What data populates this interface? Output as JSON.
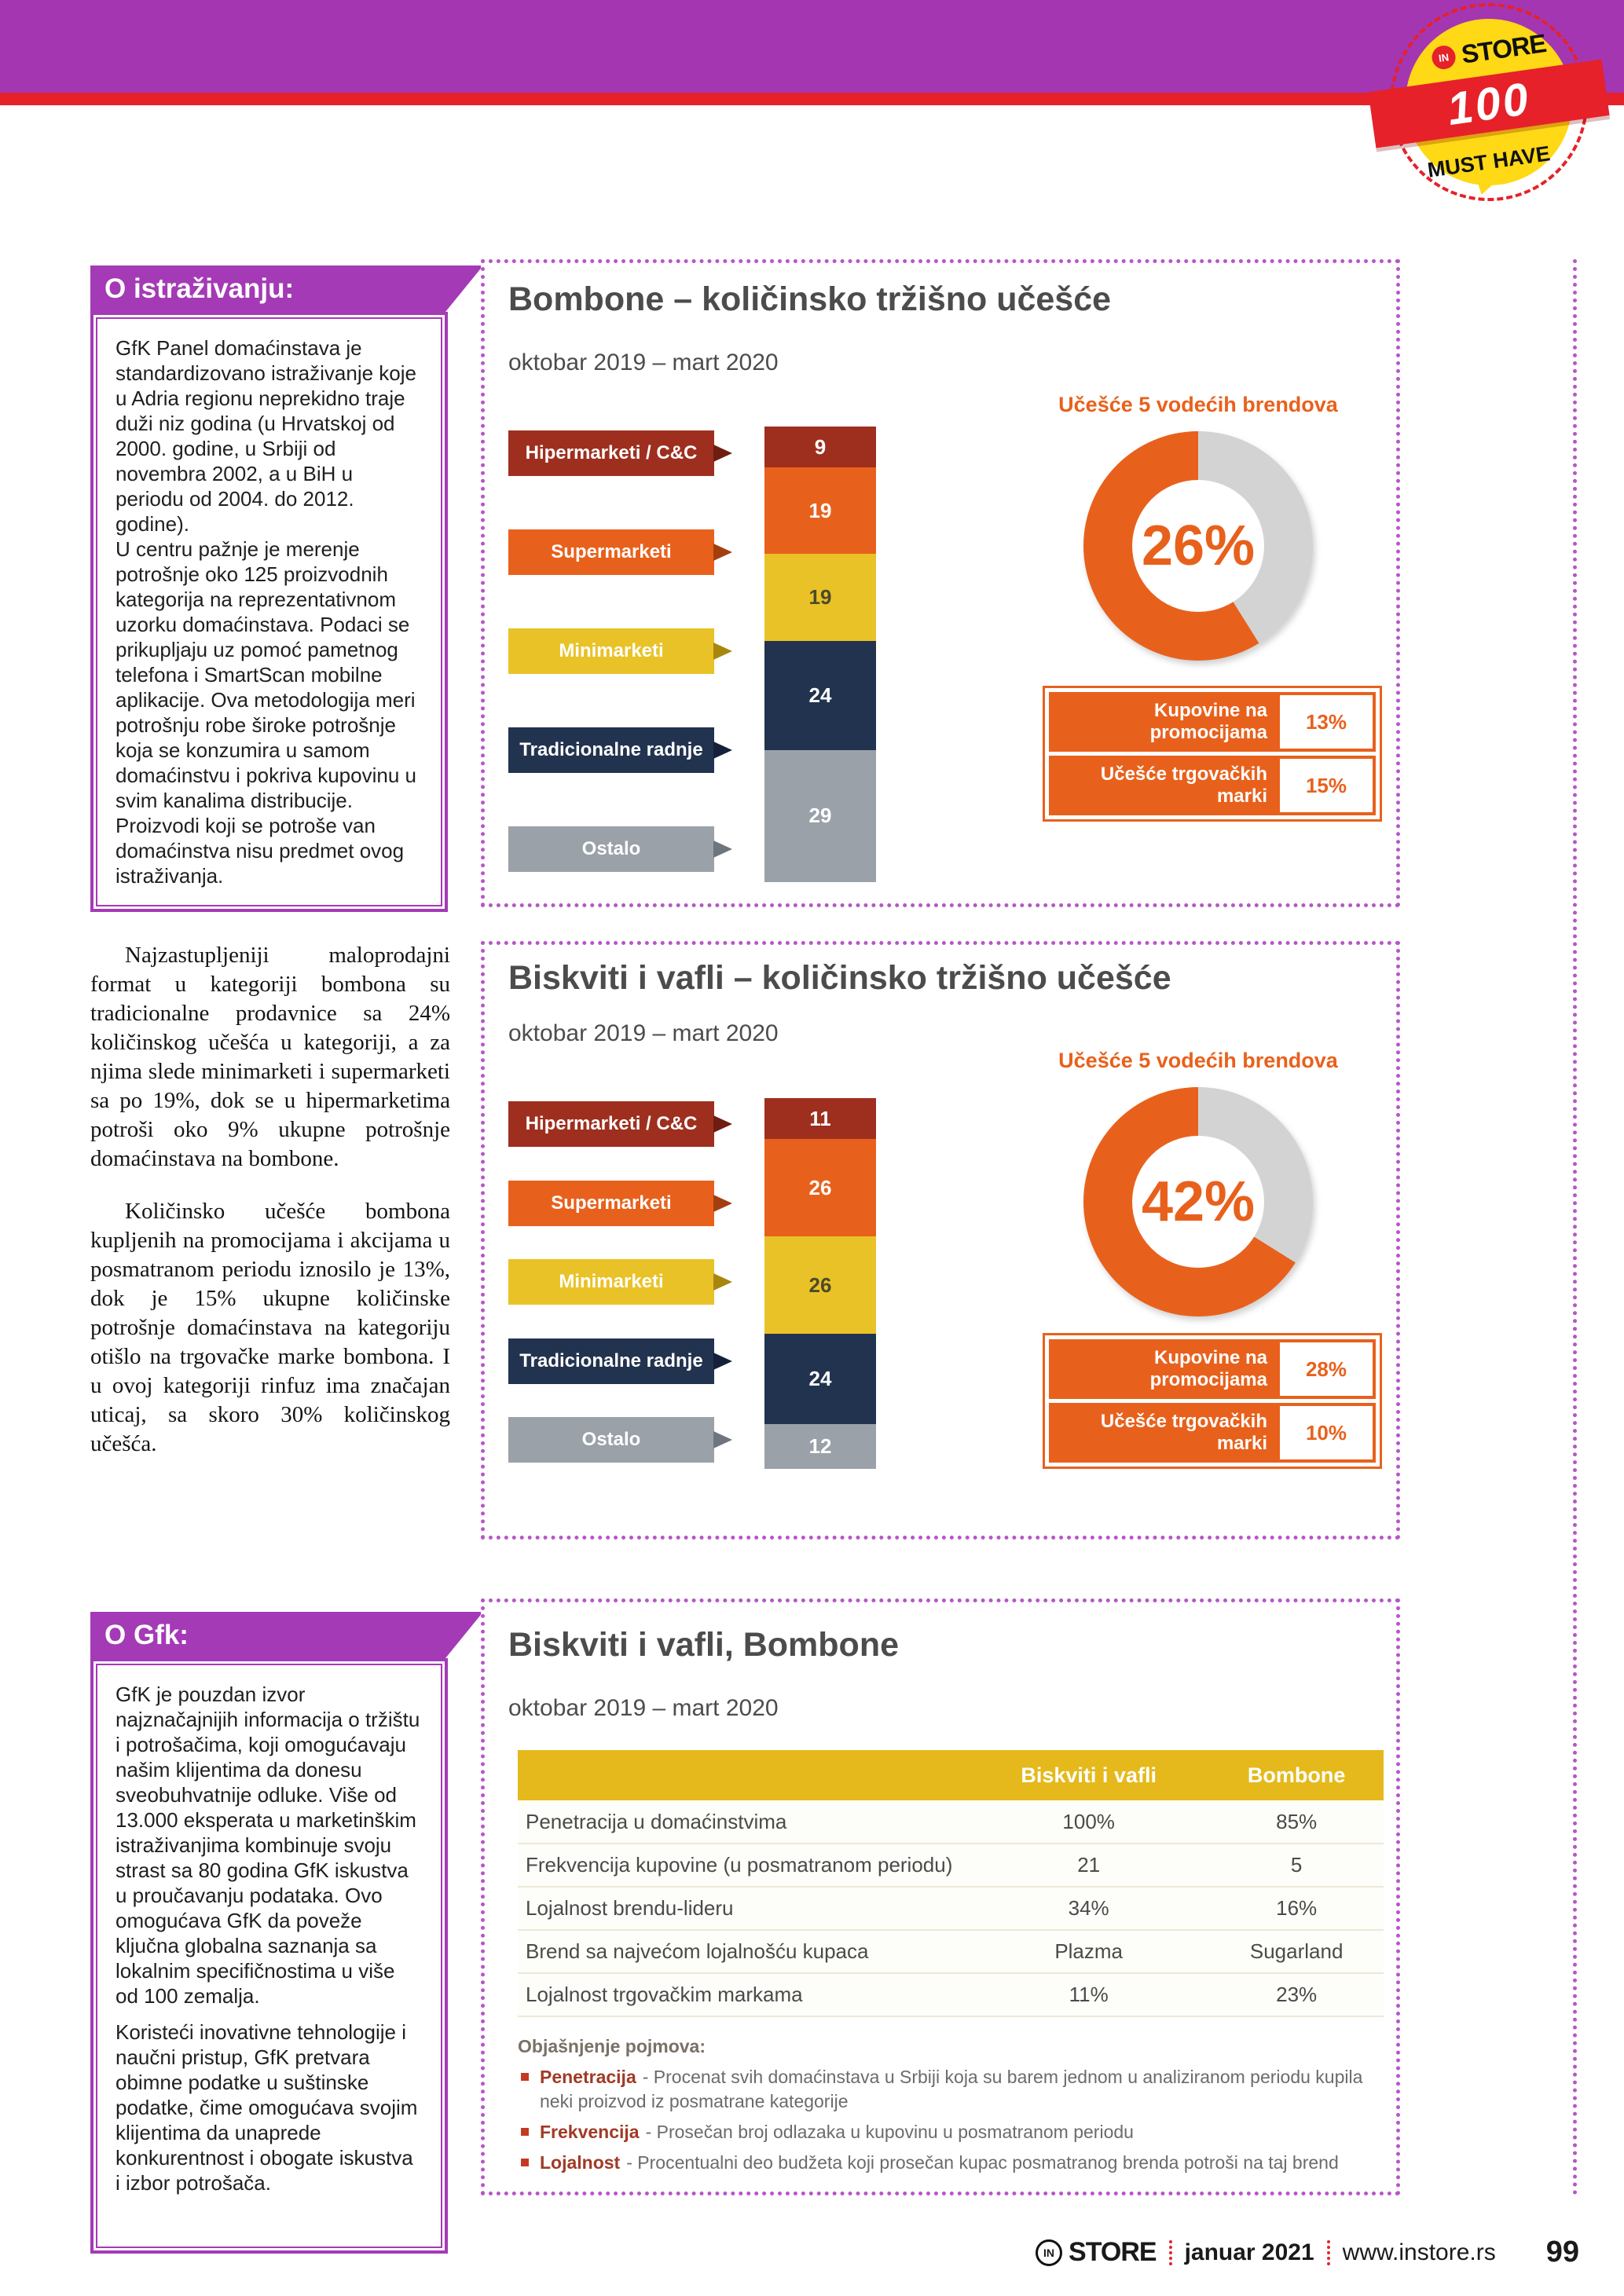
{
  "colors": {
    "brand_purple": "#a436b2",
    "brand_red": "#e62129",
    "badge_yellow": "#ffd816",
    "accent_orange": "#e8611c",
    "donut_gray": "#d3d3d3",
    "table_header_yellow": "#e5b91c",
    "dotted_border_purple": "#b855c9",
    "series_colors": [
      "#9e2f1f",
      "#e8611c",
      "#e9c227",
      "#22334f",
      "#9ba1a8"
    ]
  },
  "header": {
    "badge": {
      "in": "IN",
      "store": "STORE",
      "number": "100",
      "tagline": "MUST HAVE"
    }
  },
  "sidebar": {
    "about_research": {
      "title": "O istraživanju:",
      "body": "GfK Panel domaćinstava je standardizovano istraživanje koje u Adria regionu neprekidno traje  duži niz godina (u Hrvatskoj od 2000. godine, u Srbiji od novembra 2002, a u BiH u periodu od 2004. do 2012. godine).\nU centru pažnje je merenje potrošnje oko 125 proizvodnih kategorija na reprezentativnom uzorku domaćinstava. Podaci se prikupljaju uz pomoć pametnog telefona i SmartScan mobilne aplikacije. Ova metodologija meri potrošnju robe široke potrošnje koja se konzumira u samom domaćinstvu i pokriva kupovinu u svim kanalima distribucije. Proizvodi koji se potroše van domaćinstva nisu predmet ovog istraživanja."
    },
    "about_gfk": {
      "title": "O Gfk:",
      "para1": "GfK je pouzdan izvor najznačajnijih informacija o tržištu i potrošačima, koji omogućavaju našim klijentima da donesu sveobuhvatnije odluke. Više od 13.000 eksperata u marketinškim istraživanjima kombinuje svoju strast sa 80 godina GfK iskustva u proučavanju podataka. Ovo omogućava GfK da poveže ključna globalna saznanja sa lokalnim specifičnostima u više od 100 zemalja.",
      "para2": "Koristeći inovativne tehnologije i naučni pristup, GfK pretvara obimne podatke u suštinske podatke, čime omogućava svojim klijentima da unaprede konkurentnost i obogate iskustva i izbor potrošača."
    }
  },
  "article": {
    "para1": "Najzastupljeniji maloprodajni format u kategoriji bombona su tradicionalne prodavnice sa 24% količinskog učešća u kategoriji, a za njima slede minimarketi i supermarketi sa po 19%, dok se u hipermarketima potroši oko 9% ukupne potrošnje domaćinstava na bombone.",
    "para2": "Količinsko učešće bombona kupljenih na promocijama i akcijama u posmatranom periodu iznosilo je 13%, dok je 15% ukupne količinske potrošnje domaćinstava na kategoriju otišlo na trgovačke marke bombona. I u ovoj kategoriji rinfuz ima značajan uticaj, sa skoro 30% količinskog učešća."
  },
  "chart_data": [
    {
      "type": "bar",
      "subtype": "stacked-column",
      "title": "Bombone – količinsko tržišno učešće",
      "subtitle": "oktobar 2019 – mart 2020",
      "categories": [
        "Hipermarketi / C&C",
        "Supermarketi",
        "Minimarketi",
        "Tradicionalne radnje",
        "Ostalo"
      ],
      "values": [
        9,
        19,
        19,
        24,
        29
      ],
      "unit": "%",
      "ylim": [
        0,
        100
      ],
      "grid": "off",
      "legend_position": "category-labels-left",
      "donut_label": "Učešće 5 vodećih brendova",
      "donut_value": "26%",
      "metrics": [
        {
          "label": "Kupovine na promocijama",
          "value": "13%"
        },
        {
          "label": "Učešće trgovačkih marki",
          "value": "15%"
        }
      ]
    },
    {
      "type": "bar",
      "subtype": "stacked-column",
      "title": "Biskviti i vafli – količinsko tržišno učešće",
      "subtitle": "oktobar 2019 – mart 2020",
      "categories": [
        "Hipermarketi / C&C",
        "Supermarketi",
        "Minimarketi",
        "Tradicionalne radnje",
        "Ostalo"
      ],
      "values": [
        11,
        26,
        26,
        24,
        12
      ],
      "unit": "%",
      "ylim": [
        0,
        100
      ],
      "grid": "off",
      "legend_position": "category-labels-left",
      "donut_label": "Učešće 5 vodećih brendova",
      "donut_value": "42%",
      "metrics": [
        {
          "label": "Kupovine na promocijama",
          "value": "28%"
        },
        {
          "label": "Učešće trgovačkih marki",
          "value": "10%"
        }
      ]
    },
    {
      "type": "table",
      "title": "Biskviti i vafli, Bombone",
      "subtitle": "oktobar 2019 – mart 2020",
      "columns": [
        "Biskviti i vafli",
        "Bombone"
      ],
      "rows": [
        {
          "label": "Penetracija u domaćinstvima",
          "values": [
            "100%",
            "85%"
          ]
        },
        {
          "label": "Frekvencija kupovine (u posmatranom periodu)",
          "values": [
            "21",
            "5"
          ]
        },
        {
          "label": "Lojalnost brendu-lideru",
          "values": [
            "34%",
            "16%"
          ]
        },
        {
          "label": "Brend sa najvećom lojalnošću kupaca",
          "values": [
            "Plazma",
            "Sugarland"
          ]
        },
        {
          "label": "Lojalnost trgovačkim markama",
          "values": [
            "11%",
            "23%"
          ]
        }
      ],
      "footnotes": {
        "heading": "Objašnjenje pojmova:",
        "items": [
          {
            "term": "Penetracija",
            "text": "- Procenat svih domaćinstava u Srbiji koja su barem jednom u analiziranom periodu kupila neki proizvod iz posmatrane kategorije"
          },
          {
            "term": "Frekvencija",
            "text": "- Prosečan broj odlazaka u kupovinu u posmatranom periodu"
          },
          {
            "term": "Lojalnost",
            "text": "- Procentualni deo budžeta koji prosečan kupac posmatranog brenda potroši na taj brend"
          }
        ]
      }
    }
  ],
  "footer": {
    "logo_in": "IN",
    "logo_store": "STORE",
    "date": "januar 2021",
    "site": "www.instore.rs",
    "page_number": "99"
  }
}
